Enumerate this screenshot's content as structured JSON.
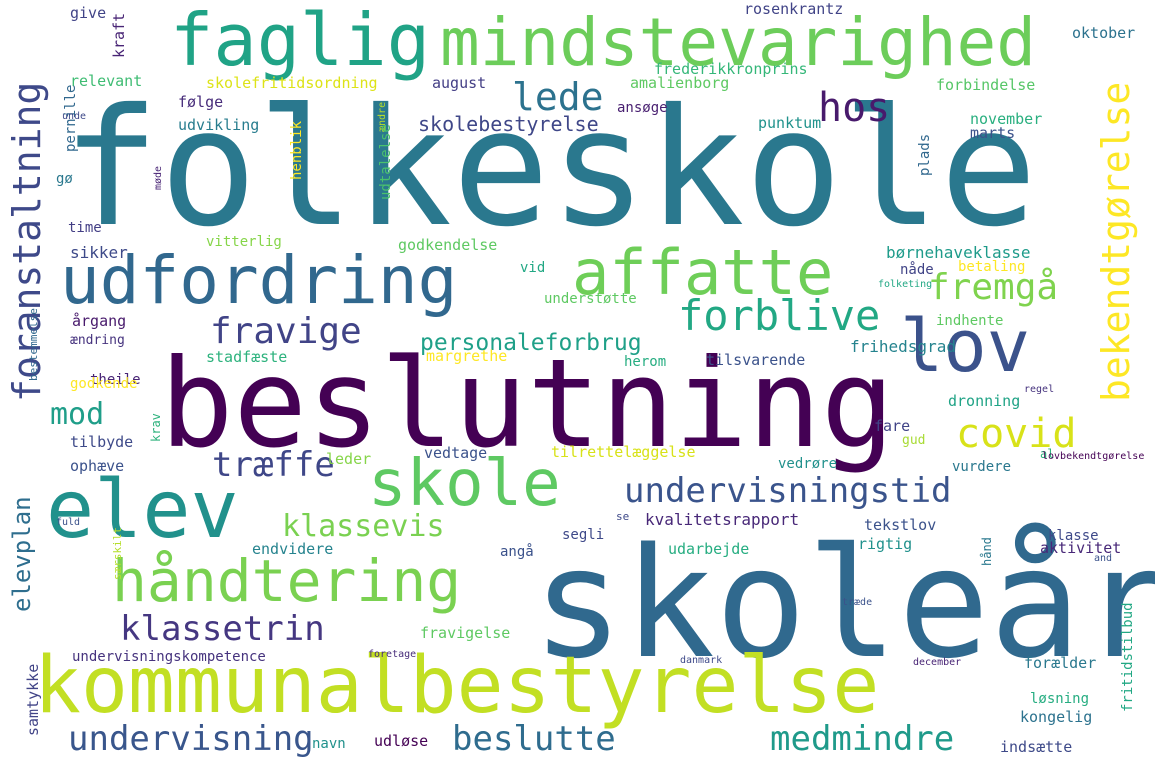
{
  "words": [
    {
      "text": "folkeskole",
      "color": "#2a788e"
    },
    {
      "text": "skoleår",
      "color": "#30698e"
    },
    {
      "text": "beslutning",
      "color": "#440154"
    },
    {
      "text": "kommunalbestyrelse",
      "color": "#c2df23"
    },
    {
      "text": "faglig",
      "color": "#20a386"
    },
    {
      "text": "mindstevarighed",
      "color": "#6ccd5a"
    },
    {
      "text": "udfordring",
      "color": "#31688e"
    },
    {
      "text": "affatte",
      "color": "#6ece58"
    },
    {
      "text": "lov",
      "color": "#3b528b"
    },
    {
      "text": "elev",
      "color": "#21918c"
    },
    {
      "text": "skole",
      "color": "#5ec962"
    },
    {
      "text": "håndtering",
      "color": "#7ad151"
    },
    {
      "text": "foranstaltning",
      "color": "#3e4989"
    },
    {
      "text": "bekendtgørelse",
      "color": "#fde725"
    },
    {
      "text": "lede",
      "color": "#2c728e"
    },
    {
      "text": "hos",
      "color": "#481a6c"
    },
    {
      "text": "fremgå",
      "color": "#7fd34e"
    },
    {
      "text": "forblive",
      "color": "#22a884"
    },
    {
      "text": "fravige",
      "color": "#414487"
    },
    {
      "text": "personaleforbrug",
      "color": "#1fa088"
    },
    {
      "text": "covid",
      "color": "#d8e219"
    },
    {
      "text": "mod",
      "color": "#1f9e89"
    },
    {
      "text": "træffe",
      "color": "#3f4788"
    },
    {
      "text": "undervisningstid",
      "color": "#3a548c"
    },
    {
      "text": "klassevis",
      "color": "#7ad151"
    },
    {
      "text": "klassetrin",
      "color": "#453781"
    },
    {
      "text": "elevplan",
      "color": "#2e6e8e"
    },
    {
      "text": "undervisning",
      "color": "#39568c"
    },
    {
      "text": "beslutte",
      "color": "#2f6c8e"
    },
    {
      "text": "medmindre",
      "color": "#1f9a8a"
    },
    {
      "text": "kvalitetsrapport",
      "color": "#482878"
    },
    {
      "text": "børnehaveklasse",
      "color": "#1e9b8a"
    },
    {
      "text": "sikker",
      "color": "#3e4a89"
    },
    {
      "text": "frihedsgrad",
      "color": "#25838e"
    },
    {
      "text": "stadfæste",
      "color": "#2db27d"
    },
    {
      "text": "skolebestyrelse",
      "color": "#3f4788"
    },
    {
      "text": "give",
      "color": "#414487"
    },
    {
      "text": "kraft",
      "color": "#482475"
    },
    {
      "text": "relevant",
      "color": "#3fbc73"
    },
    {
      "text": "skolefritidsordning",
      "color": "#dde318"
    },
    {
      "text": "august",
      "color": "#433e85"
    },
    {
      "text": "amalienborg",
      "color": "#5ec962"
    },
    {
      "text": "frederikkronprins",
      "color": "#35b779"
    },
    {
      "text": "rosenkrantz",
      "color": "#414487"
    },
    {
      "text": "oktober",
      "color": "#2c728e"
    },
    {
      "text": "forbindelse",
      "color": "#56c667"
    },
    {
      "text": "følge",
      "color": "#472c7a"
    },
    {
      "text": "udvikling",
      "color": "#287d8e"
    },
    {
      "text": "punktum",
      "color": "#20928c"
    },
    {
      "text": "november",
      "color": "#29af7f"
    },
    {
      "text": "marts",
      "color": "#3b528b"
    },
    {
      "text": "ansøge",
      "color": "#481f70"
    },
    {
      "text": "pernille",
      "color": "#31688e"
    },
    {
      "text": "unde",
      "color": "#3e4989"
    },
    {
      "text": "ændre",
      "color": "#b8de29"
    },
    {
      "text": "henblik",
      "color": "#fde725"
    },
    {
      "text": "udtalelse",
      "color": "#4ac16d"
    },
    {
      "text": "plads",
      "color": "#31688e"
    },
    {
      "text": "gø",
      "color": "#2a788e"
    },
    {
      "text": "møde",
      "color": "#482475"
    },
    {
      "text": "time",
      "color": "#433e85"
    },
    {
      "text": "vitterlig",
      "color": "#86d549"
    },
    {
      "text": "godkendelse",
      "color": "#5ec962"
    },
    {
      "text": "vid",
      "color": "#22a884"
    },
    {
      "text": "nåde",
      "color": "#414487"
    },
    {
      "text": "betaling",
      "color": "#fde725"
    },
    {
      "text": "folketing",
      "color": "#22a884"
    },
    {
      "text": "understøtte",
      "color": "#5ec962"
    },
    {
      "text": "indhente",
      "color": "#5ec962"
    },
    {
      "text": "årgang",
      "color": "#481a6c"
    },
    {
      "text": "ændring",
      "color": "#46337e"
    },
    {
      "text": "margrethe",
      "color": "#fde725"
    },
    {
      "text": "herom",
      "color": "#26ad81"
    },
    {
      "text": "tilsvarende",
      "color": "#3b528b"
    },
    {
      "text": "theile",
      "color": "#482475"
    },
    {
      "text": "bestemmelse",
      "color": "#31688e"
    },
    {
      "text": "godkende",
      "color": "#fde725"
    },
    {
      "text": "dronning",
      "color": "#20a386"
    },
    {
      "text": "regel",
      "color": "#46337e"
    },
    {
      "text": "krav",
      "color": "#2db27d"
    },
    {
      "text": "tilbyde",
      "color": "#3e4a89"
    },
    {
      "text": "fare",
      "color": "#414487"
    },
    {
      "text": "gud",
      "color": "#a8db34"
    },
    {
      "text": "al",
      "color": "#2db27d"
    },
    {
      "text": "ophæve",
      "color": "#3b528b"
    },
    {
      "text": "leder",
      "color": "#86d549"
    },
    {
      "text": "vedtage",
      "color": "#3b528b"
    },
    {
      "text": "tilrettelæggelse",
      "color": "#d8e219"
    },
    {
      "text": "vedrøre",
      "color": "#21918c"
    },
    {
      "text": "vurdere",
      "color": "#2a788e"
    },
    {
      "text": "lovbekendtgørelse",
      "color": "#440154"
    },
    {
      "text": "segli",
      "color": "#3e4989"
    },
    {
      "text": "se",
      "color": "#3e4989"
    },
    {
      "text": "tekstlov",
      "color": "#3b528b"
    },
    {
      "text": "klasse",
      "color": "#3e4989"
    },
    {
      "text": "fuld",
      "color": "#3b528b"
    },
    {
      "text": "særskilt",
      "color": "#b5de2b"
    },
    {
      "text": "endvidere",
      "color": "#25838e"
    },
    {
      "text": "angå",
      "color": "#3b528b"
    },
    {
      "text": "udarbejde",
      "color": "#26ad81"
    },
    {
      "text": "rigtig",
      "color": "#21918c"
    },
    {
      "text": "hånd",
      "color": "#2a788e"
    },
    {
      "text": "aktivitet",
      "color": "#482878"
    },
    {
      "text": "and",
      "color": "#3b528b"
    },
    {
      "text": "fritidstilbud",
      "color": "#22a884"
    },
    {
      "text": "træde",
      "color": "#3b528b"
    },
    {
      "text": "fravigelse",
      "color": "#5ec962"
    },
    {
      "text": "samtykke",
      "color": "#414487"
    },
    {
      "text": "undervisningskompetence",
      "color": "#46337e"
    },
    {
      "text": "foretage",
      "color": "#472c7a"
    },
    {
      "text": "danmark",
      "color": "#3e4989"
    },
    {
      "text": "december",
      "color": "#482475"
    },
    {
      "text": "forælder",
      "color": "#2a788e"
    },
    {
      "text": "løsning",
      "color": "#26ad81"
    },
    {
      "text": "kongelig",
      "color": "#2c728e"
    },
    {
      "text": "navn",
      "color": "#21918c"
    },
    {
      "text": "udløse",
      "color": "#440154"
    },
    {
      "text": "indsætte",
      "color": "#3e4a89"
    }
  ]
}
